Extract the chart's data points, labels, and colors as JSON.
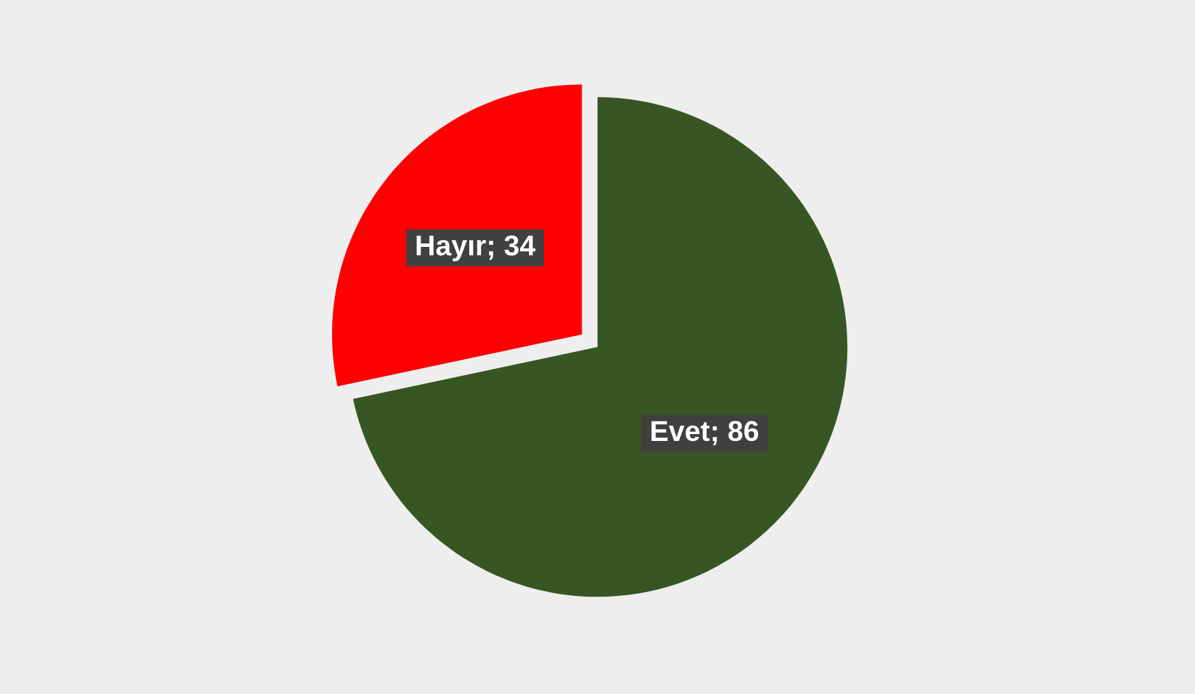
{
  "chart_data": {
    "type": "pie",
    "categories": [
      "Evet",
      "Hayır"
    ],
    "values": [
      86,
      34
    ],
    "colors": [
      "#375623",
      "#ff0000"
    ],
    "value_labels": [
      "; 86",
      "; 34"
    ],
    "legend": false
  }
}
